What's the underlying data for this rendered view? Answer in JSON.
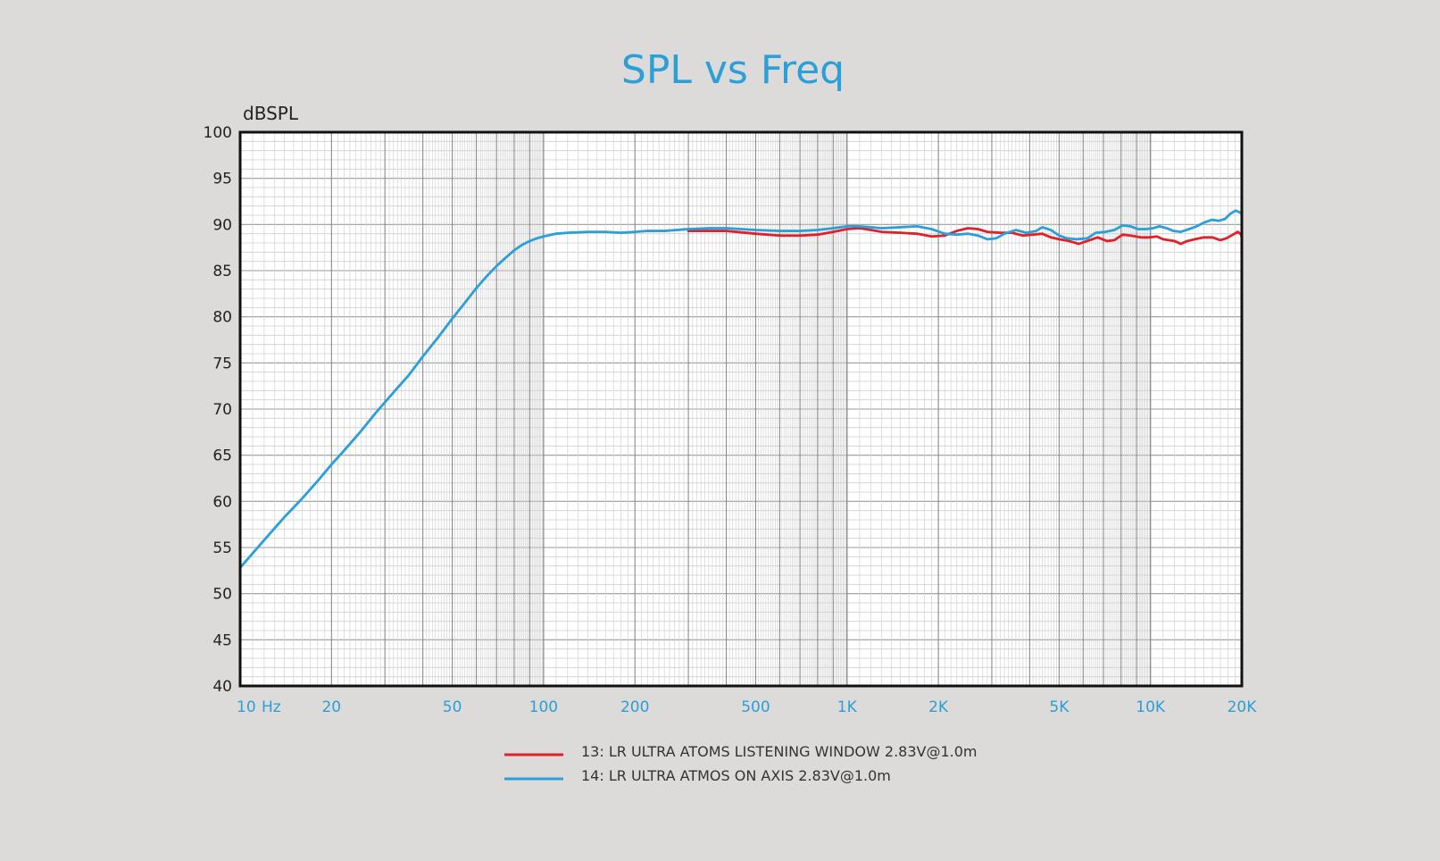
{
  "chart_data": {
    "type": "line",
    "title": "SPL vs Freq",
    "ylabel": "dBSPL",
    "xscale": "log",
    "xlim": [
      10,
      20000
    ],
    "ylim": [
      40,
      100
    ],
    "grid": true,
    "legend_position": "bottom-center",
    "yticks": [
      100,
      95,
      90,
      85,
      80,
      75,
      70,
      65,
      60,
      55,
      50,
      45,
      40
    ],
    "xticks": [
      {
        "value": 10,
        "label": "10"
      },
      {
        "value": 20,
        "label": "20"
      },
      {
        "value": 50,
        "label": "50"
      },
      {
        "value": 100,
        "label": "100"
      },
      {
        "value": 200,
        "label": "200"
      },
      {
        "value": 500,
        "label": "500"
      },
      {
        "value": 1000,
        "label": "1K"
      },
      {
        "value": 2000,
        "label": "2K"
      },
      {
        "value": 5000,
        "label": "5K"
      },
      {
        "value": 10000,
        "label": "10K"
      },
      {
        "value": 20000,
        "label": "20K"
      }
    ],
    "x_unit_label": "Hz",
    "series": [
      {
        "name": "13: LR ULTRA ATOMS LISTENING WINDOW 2.83V@1.0m",
        "color": "#e0202a",
        "points": [
          [
            300,
            89.3
          ],
          [
            400,
            89.3
          ],
          [
            500,
            89.0
          ],
          [
            600,
            88.8
          ],
          [
            700,
            88.8
          ],
          [
            800,
            88.9
          ],
          [
            900,
            89.2
          ],
          [
            1000,
            89.5
          ],
          [
            1100,
            89.6
          ],
          [
            1200,
            89.4
          ],
          [
            1300,
            89.2
          ],
          [
            1500,
            89.1
          ],
          [
            1700,
            89.0
          ],
          [
            1900,
            88.7
          ],
          [
            2100,
            88.8
          ],
          [
            2300,
            89.3
          ],
          [
            2500,
            89.6
          ],
          [
            2700,
            89.5
          ],
          [
            2900,
            89.2
          ],
          [
            3200,
            89.1
          ],
          [
            3500,
            89.1
          ],
          [
            3800,
            88.8
          ],
          [
            4100,
            88.9
          ],
          [
            4400,
            89.0
          ],
          [
            4700,
            88.6
          ],
          [
            5000,
            88.4
          ],
          [
            5400,
            88.2
          ],
          [
            5800,
            87.9
          ],
          [
            6300,
            88.3
          ],
          [
            6700,
            88.6
          ],
          [
            7200,
            88.2
          ],
          [
            7600,
            88.3
          ],
          [
            8100,
            88.9
          ],
          [
            8600,
            88.8
          ],
          [
            9300,
            88.6
          ],
          [
            9900,
            88.6
          ],
          [
            10500,
            88.7
          ],
          [
            11000,
            88.4
          ],
          [
            12000,
            88.2
          ],
          [
            12600,
            87.9
          ],
          [
            13200,
            88.2
          ],
          [
            14000,
            88.4
          ],
          [
            15000,
            88.6
          ],
          [
            16000,
            88.6
          ],
          [
            17000,
            88.3
          ],
          [
            17800,
            88.5
          ],
          [
            18700,
            88.9
          ],
          [
            19400,
            89.2
          ],
          [
            19900,
            88.9
          ],
          [
            20000,
            88.5
          ]
        ]
      },
      {
        "name": "14: LR ULTRA ATMOS ON AXIS 2.83V@1.0m",
        "color": "#2a9fd8",
        "points": [
          [
            10,
            52.8
          ],
          [
            12,
            55.8
          ],
          [
            14,
            58.3
          ],
          [
            16,
            60.3
          ],
          [
            18,
            62.2
          ],
          [
            20,
            64.0
          ],
          [
            22,
            65.5
          ],
          [
            25,
            67.6
          ],
          [
            28,
            69.6
          ],
          [
            32,
            71.8
          ],
          [
            36,
            73.7
          ],
          [
            40,
            75.7
          ],
          [
            45,
            77.8
          ],
          [
            50,
            79.8
          ],
          [
            55,
            81.5
          ],
          [
            60,
            83.1
          ],
          [
            65,
            84.4
          ],
          [
            70,
            85.5
          ],
          [
            75,
            86.4
          ],
          [
            80,
            87.2
          ],
          [
            85,
            87.8
          ],
          [
            90,
            88.2
          ],
          [
            95,
            88.5
          ],
          [
            100,
            88.7
          ],
          [
            110,
            89.0
          ],
          [
            120,
            89.1
          ],
          [
            140,
            89.2
          ],
          [
            160,
            89.2
          ],
          [
            180,
            89.1
          ],
          [
            200,
            89.2
          ],
          [
            220,
            89.3
          ],
          [
            250,
            89.3
          ],
          [
            300,
            89.5
          ],
          [
            350,
            89.6
          ],
          [
            400,
            89.6
          ],
          [
            500,
            89.4
          ],
          [
            600,
            89.3
          ],
          [
            700,
            89.3
          ],
          [
            800,
            89.4
          ],
          [
            900,
            89.6
          ],
          [
            1000,
            89.8
          ],
          [
            1100,
            89.8
          ],
          [
            1200,
            89.7
          ],
          [
            1300,
            89.6
          ],
          [
            1500,
            89.7
          ],
          [
            1700,
            89.8
          ],
          [
            1900,
            89.5
          ],
          [
            2100,
            89.0
          ],
          [
            2300,
            88.9
          ],
          [
            2500,
            89.0
          ],
          [
            2700,
            88.8
          ],
          [
            2900,
            88.4
          ],
          [
            3100,
            88.5
          ],
          [
            3300,
            89.0
          ],
          [
            3600,
            89.4
          ],
          [
            3900,
            89.1
          ],
          [
            4200,
            89.3
          ],
          [
            4400,
            89.7
          ],
          [
            4700,
            89.4
          ],
          [
            5000,
            88.8
          ],
          [
            5300,
            88.5
          ],
          [
            5700,
            88.4
          ],
          [
            6200,
            88.5
          ],
          [
            6600,
            89.1
          ],
          [
            7100,
            89.2
          ],
          [
            7600,
            89.4
          ],
          [
            8100,
            89.9
          ],
          [
            8600,
            89.8
          ],
          [
            9100,
            89.5
          ],
          [
            9700,
            89.5
          ],
          [
            10200,
            89.6
          ],
          [
            10700,
            89.8
          ],
          [
            11300,
            89.6
          ],
          [
            11900,
            89.3
          ],
          [
            12600,
            89.2
          ],
          [
            13400,
            89.5
          ],
          [
            14200,
            89.8
          ],
          [
            15000,
            90.2
          ],
          [
            15900,
            90.5
          ],
          [
            16800,
            90.4
          ],
          [
            17600,
            90.6
          ],
          [
            18400,
            91.2
          ],
          [
            19100,
            91.5
          ],
          [
            19700,
            91.3
          ],
          [
            20000,
            91.2
          ]
        ]
      }
    ]
  }
}
